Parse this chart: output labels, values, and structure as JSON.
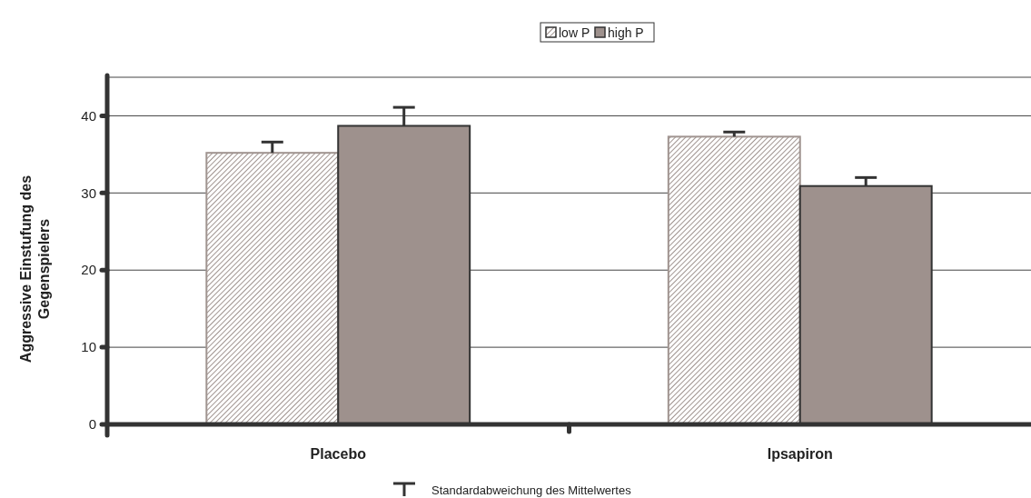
{
  "chart_data": {
    "type": "bar",
    "ylabel": "Aggressive Einstufung des Gegenspielers",
    "categories": [
      "Placebo",
      "Ipsapiron"
    ],
    "series": [
      {
        "name": "low P",
        "color": "#a09490",
        "values": [
          35.2,
          37.3
        ],
        "errors": [
          [
            35.2,
            36.6
          ],
          [
            37.3,
            37.9
          ]
        ]
      },
      {
        "name": "high P",
        "color": "#9e918d",
        "values": [
          38.7,
          30.9
        ],
        "errors": [
          [
            38.7,
            41.1
          ],
          [
            30.9,
            32.0
          ]
        ]
      }
    ],
    "ylim": [
      0,
      45
    ],
    "yticks": [
      0,
      10,
      20,
      30,
      40
    ],
    "grid": "y",
    "legend": "top",
    "annotations": [
      "Standardabweichung des Mittelwertes"
    ]
  }
}
